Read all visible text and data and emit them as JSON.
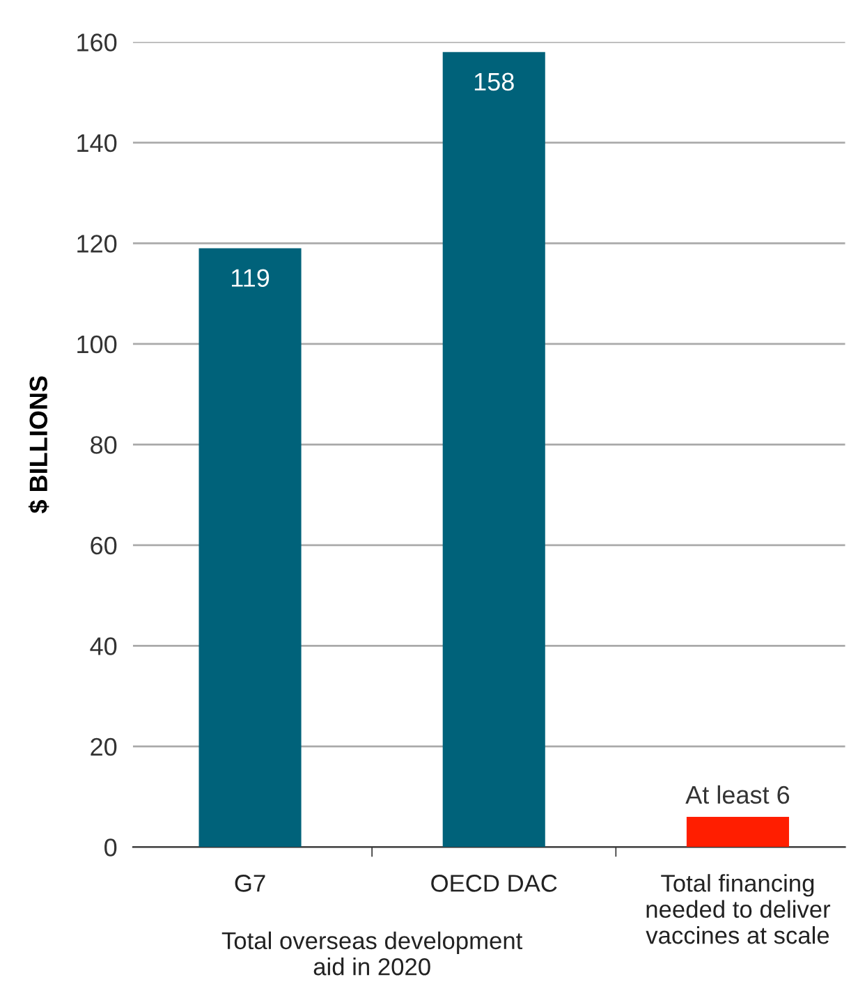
{
  "chart_data": {
    "type": "bar",
    "categories": [
      "G7",
      "OECD DAC",
      "Total financing\nneeded to deliver\nvaccines at scale"
    ],
    "values": [
      119,
      158,
      6
    ],
    "colors": [
      "#00627a",
      "#00627a",
      "#ff1e00"
    ],
    "value_labels": [
      "119",
      "158",
      "At least 6"
    ],
    "ylabel": "$ BILLIONS",
    "ylim": [
      0,
      160
    ],
    "yticks": [
      0,
      20,
      40,
      60,
      80,
      100,
      120,
      140,
      160
    ],
    "grid": "y",
    "annotations": [
      "Total overseas development\naid in 2020"
    ]
  }
}
